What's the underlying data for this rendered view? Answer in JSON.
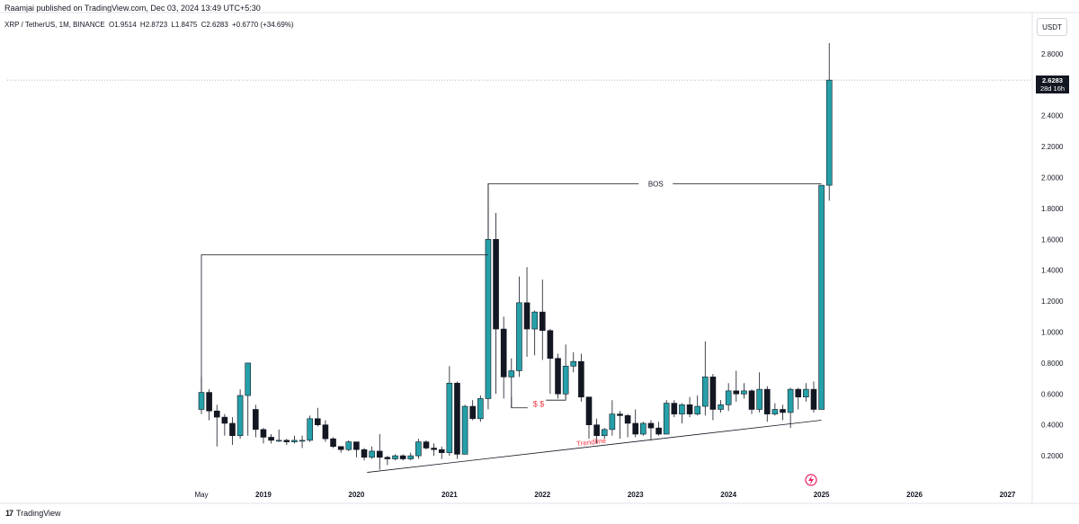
{
  "header": {
    "published": "Raamjai published on TradingView.com, Dec 03, 2024 13:49 UTC+5:30"
  },
  "symbol": {
    "name": "XRP / TetherUS, 1M, BINANCE",
    "open": "O1.9514",
    "high": "H2.8723",
    "low": "L1.8475",
    "close": "C2.6283",
    "change": "+0.6770 (+34.69%)"
  },
  "currency": "USDT",
  "last_price": {
    "value": "2.6283",
    "countdown": "28d 16h"
  },
  "footer": {
    "brand": "TradingView"
  },
  "colors": {
    "up": "#26a0a8",
    "down": "#131722",
    "annotation_red": "#f23645",
    "grid": "#e0e3eb"
  },
  "chart_data": {
    "type": "candlestick",
    "interval": "1M",
    "y_axis": {
      "min": 0.1,
      "max": 2.95,
      "ticks": [
        "0.2000",
        "0.4000",
        "0.6000",
        "0.8000",
        "1.0000",
        "1.2000",
        "1.4000",
        "1.6000",
        "1.8000",
        "2.0000",
        "2.2000",
        "2.4000",
        "2.8000"
      ]
    },
    "x_axis": {
      "labels": [
        "May",
        "2019",
        "2020",
        "2021",
        "2022",
        "2023",
        "2024",
        "2025",
        "2026",
        "2027"
      ],
      "label_index": [
        0,
        8,
        20,
        32,
        44,
        56,
        68,
        80,
        92,
        104
      ]
    },
    "candles": [
      [
        0.5,
        0.61,
        0.71,
        0.47
      ],
      [
        0.61,
        0.49,
        0.63,
        0.43
      ],
      [
        0.49,
        0.45,
        0.53,
        0.26
      ],
      [
        0.45,
        0.41,
        0.47,
        0.33
      ],
      [
        0.41,
        0.33,
        0.45,
        0.27
      ],
      [
        0.33,
        0.59,
        0.63,
        0.31
      ],
      [
        0.59,
        0.8,
        0.8,
        0.33
      ],
      [
        0.5,
        0.37,
        0.53,
        0.32
      ],
      [
        0.37,
        0.32,
        0.38,
        0.28
      ],
      [
        0.32,
        0.3,
        0.34,
        0.28
      ],
      [
        0.3,
        0.3,
        0.37,
        0.29
      ],
      [
        0.3,
        0.29,
        0.31,
        0.27
      ],
      [
        0.29,
        0.3,
        0.33,
        0.28
      ],
      [
        0.3,
        0.3,
        0.33,
        0.25
      ],
      [
        0.3,
        0.44,
        0.46,
        0.29
      ],
      [
        0.44,
        0.4,
        0.51,
        0.39
      ],
      [
        0.4,
        0.31,
        0.43,
        0.29
      ],
      [
        0.31,
        0.26,
        0.32,
        0.25
      ],
      [
        0.26,
        0.24,
        0.26,
        0.22
      ],
      [
        0.24,
        0.29,
        0.3,
        0.23
      ],
      [
        0.29,
        0.24,
        0.29,
        0.19
      ],
      [
        0.24,
        0.19,
        0.25,
        0.17
      ],
      [
        0.19,
        0.23,
        0.26,
        0.18
      ],
      [
        0.23,
        0.19,
        0.34,
        0.11
      ],
      [
        0.19,
        0.18,
        0.2,
        0.14
      ],
      [
        0.18,
        0.2,
        0.21,
        0.17
      ],
      [
        0.2,
        0.18,
        0.21,
        0.17
      ],
      [
        0.18,
        0.2,
        0.22,
        0.17
      ],
      [
        0.2,
        0.29,
        0.31,
        0.18
      ],
      [
        0.29,
        0.25,
        0.3,
        0.24
      ],
      [
        0.25,
        0.24,
        0.28,
        0.2
      ],
      [
        0.24,
        0.22,
        0.26,
        0.18
      ],
      [
        0.22,
        0.67,
        0.78,
        0.2
      ],
      [
        0.67,
        0.21,
        0.68,
        0.18
      ],
      [
        0.21,
        0.52,
        0.53,
        0.21
      ],
      [
        0.52,
        0.44,
        0.56,
        0.43
      ],
      [
        0.44,
        0.57,
        0.59,
        0.42
      ],
      [
        0.57,
        1.6,
        1.96,
        0.5
      ],
      [
        1.6,
        1.02,
        1.77,
        0.6
      ],
      [
        1.02,
        0.71,
        1.1,
        0.57
      ],
      [
        0.71,
        0.75,
        0.83,
        0.51
      ],
      [
        0.75,
        1.19,
        1.36,
        0.71
      ],
      [
        1.19,
        1.02,
        1.42,
        0.84
      ],
      [
        1.02,
        1.13,
        1.14,
        0.85
      ],
      [
        1.13,
        1.01,
        1.34,
        0.82
      ],
      [
        1.01,
        0.83,
        1.02,
        0.6
      ],
      [
        0.83,
        0.6,
        0.86,
        0.57
      ],
      [
        0.6,
        0.78,
        0.92,
        0.57
      ],
      [
        0.78,
        0.81,
        0.87,
        0.74
      ],
      [
        0.81,
        0.58,
        0.86,
        0.55
      ],
      [
        0.58,
        0.4,
        0.58,
        0.31
      ],
      [
        0.4,
        0.33,
        0.44,
        0.28
      ],
      [
        0.33,
        0.37,
        0.38,
        0.31
      ],
      [
        0.37,
        0.47,
        0.56,
        0.33
      ],
      [
        0.47,
        0.46,
        0.49,
        0.31
      ],
      [
        0.46,
        0.41,
        0.47,
        0.32
      ],
      [
        0.41,
        0.34,
        0.5,
        0.32
      ],
      [
        0.34,
        0.41,
        0.42,
        0.33
      ],
      [
        0.41,
        0.38,
        0.43,
        0.3
      ],
      [
        0.38,
        0.34,
        0.42,
        0.33
      ],
      [
        0.34,
        0.54,
        0.56,
        0.34
      ],
      [
        0.54,
        0.47,
        0.56,
        0.45
      ],
      [
        0.47,
        0.53,
        0.54,
        0.41
      ],
      [
        0.53,
        0.47,
        0.58,
        0.45
      ],
      [
        0.47,
        0.52,
        0.59,
        0.46
      ],
      [
        0.52,
        0.71,
        0.94,
        0.46
      ],
      [
        0.71,
        0.5,
        0.73,
        0.43
      ],
      [
        0.5,
        0.53,
        0.56,
        0.48
      ],
      [
        0.53,
        0.62,
        0.67,
        0.49
      ],
      [
        0.62,
        0.6,
        0.75,
        0.55
      ],
      [
        0.6,
        0.62,
        0.67,
        0.57
      ],
      [
        0.62,
        0.5,
        0.63,
        0.47
      ],
      [
        0.5,
        0.63,
        0.74,
        0.48
      ],
      [
        0.63,
        0.47,
        0.65,
        0.42
      ],
      [
        0.47,
        0.5,
        0.54,
        0.46
      ],
      [
        0.5,
        0.48,
        0.53,
        0.43
      ],
      [
        0.48,
        0.63,
        0.64,
        0.38
      ],
      [
        0.63,
        0.58,
        0.64,
        0.5
      ],
      [
        0.58,
        0.63,
        0.67,
        0.55
      ],
      [
        0.63,
        0.5,
        0.68,
        0.48
      ],
      [
        0.5,
        1.95,
        1.95,
        0.5
      ],
      [
        1.95,
        2.63,
        2.87,
        1.85
      ]
    ],
    "annotations": [
      {
        "type": "bracket",
        "label": "",
        "from": {
          "index": 0,
          "price": 1.5
        },
        "to": {
          "index": 37,
          "price": 1.5
        },
        "down_to": {
          "index": 0,
          "price": 0.61
        },
        "right_down_to": {
          "index": 37,
          "price": 1.5
        }
      },
      {
        "type": "bracket",
        "label": "BOS",
        "from": {
          "index": 37,
          "price": 1.96
        },
        "to": {
          "index": 80,
          "price": 1.96
        }
      },
      {
        "type": "line",
        "label": "$ $",
        "from": {
          "index": 40,
          "price": 0.51
        },
        "to": {
          "index": 47,
          "price": 0.56
        }
      },
      {
        "type": "trendline",
        "label": "Trendline",
        "from": {
          "index": 23,
          "price": 0.11
        },
        "to": {
          "index": 80,
          "price": 0.43
        }
      }
    ]
  }
}
